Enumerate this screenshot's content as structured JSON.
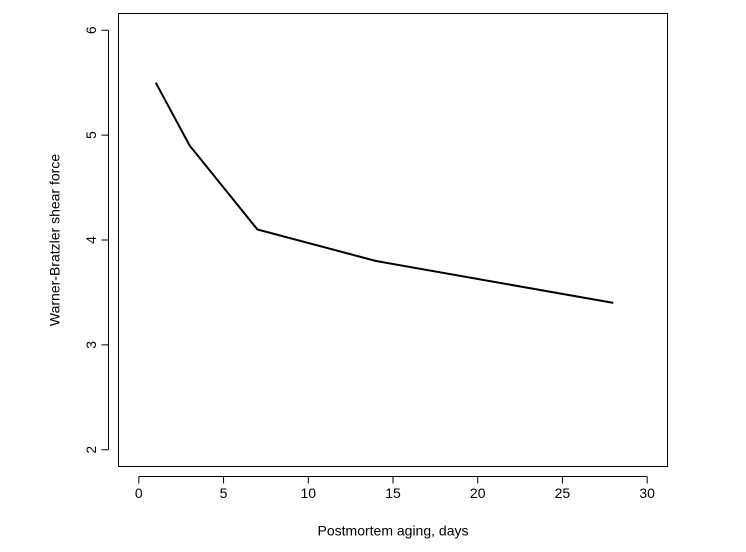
{
  "chart_data": {
    "type": "line",
    "x_label": "Postmortem aging, days",
    "y_label": "Warner-Bratzler shear force",
    "x": [
      1,
      3,
      7,
      14,
      28
    ],
    "values": [
      5.5,
      4.9,
      4.1,
      3.8,
      3.4
    ],
    "color": "#000000",
    "xlim": [
      -1.2,
      31.2
    ],
    "xticks": [
      0,
      5,
      10,
      15,
      20,
      25,
      30
    ],
    "ylim": [
      1.84,
      6.16
    ],
    "yticks": [
      2,
      3,
      4,
      5,
      6
    ],
    "grid": false
  }
}
